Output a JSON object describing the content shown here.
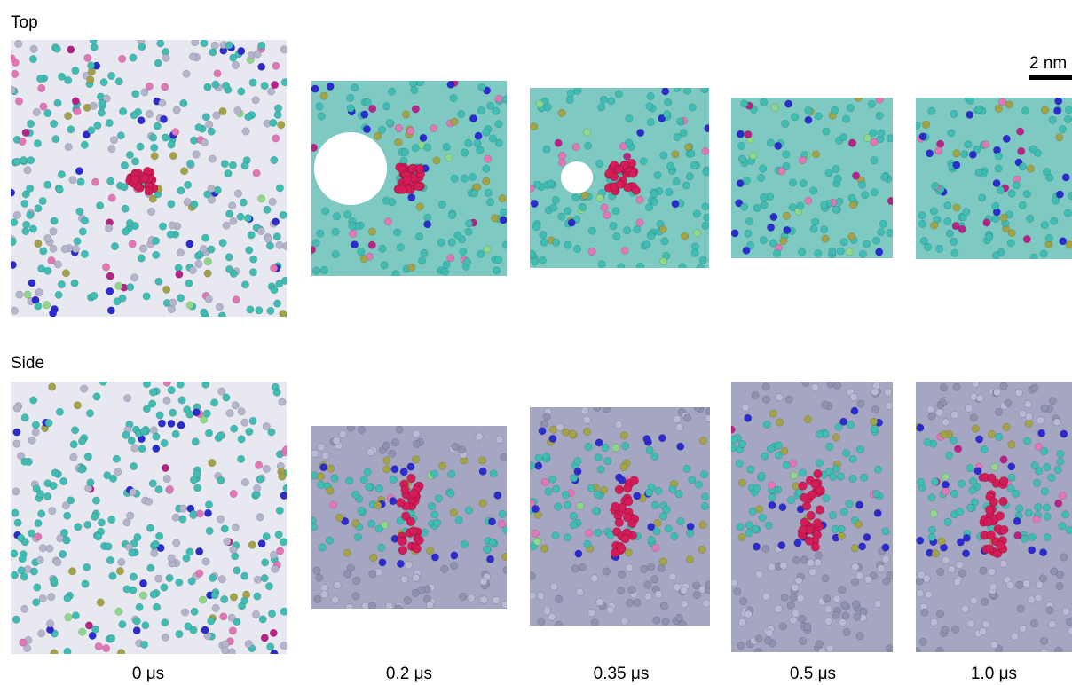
{
  "row_labels": {
    "top": "Top",
    "side": "Side"
  },
  "scale_bar": "2 nm",
  "time_labels": [
    "0 μs",
    "0.2 μs",
    "0.35 μs",
    "0.5 μs",
    "1.0 μs"
  ]
}
